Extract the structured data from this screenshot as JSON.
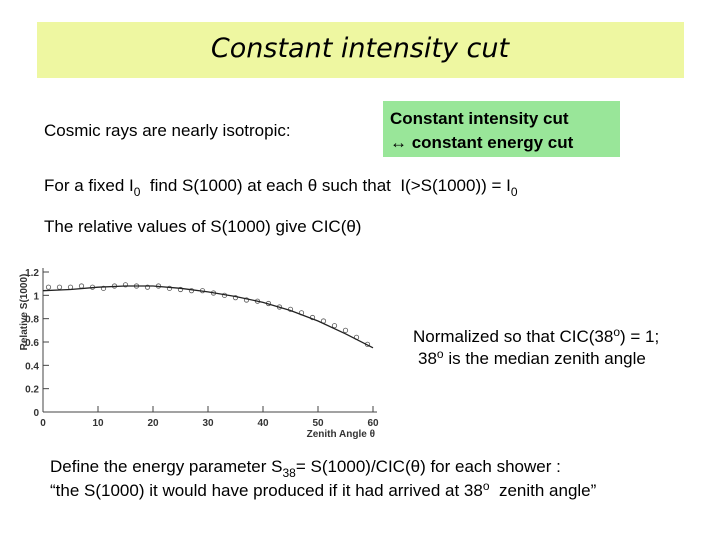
{
  "title": "Constant intensity cut",
  "left_text": "Cosmic rays are nearly isotropic:",
  "box": [
    "Constant intensity cut",
    "↔ constant energy cut"
  ],
  "line1": [
    "For a fixed I",
    "0",
    "  find S(1000) at each θ such that  I(>S(1000)) = I",
    "0"
  ],
  "line2": "The relative values of S(1000) give CIC(θ)",
  "note": [
    [
      "Normalized so that CIC(38",
      "o",
      ") = 1;"
    ],
    [
      "38",
      "o",
      " is the median zenith angle"
    ]
  ],
  "footer": [
    [
      "Define the energy parameter S",
      "38",
      "= S(1000)/CIC(θ) for each shower :"
    ],
    [
      "“the S(1000) it would have produced if it had arrived at 38",
      "o",
      "  zenith angle”"
    ]
  ],
  "chart_data": {
    "type": "scatter",
    "x_label": "Zenith Angle θ",
    "y_label": "Relative S(1000)",
    "xlim": [
      0,
      60
    ],
    "ylim": [
      0,
      1.2
    ],
    "xticks": [
      0,
      10,
      20,
      30,
      40,
      50,
      60
    ],
    "yticks": [
      0,
      0.2,
      0.4,
      0.6,
      0.8,
      1,
      1.2
    ],
    "series": [
      {
        "type": "scatter",
        "color": "#555555",
        "x": [
          1,
          3,
          5,
          7,
          9,
          11,
          13,
          15,
          17,
          19,
          21,
          23,
          25,
          27,
          29,
          31,
          33,
          35,
          37,
          39,
          41,
          43,
          45,
          47,
          49,
          51,
          53,
          55,
          57,
          59
        ],
        "values": [
          1.07,
          1.07,
          1.07,
          1.08,
          1.07,
          1.06,
          1.08,
          1.09,
          1.08,
          1.07,
          1.08,
          1.06,
          1.05,
          1.04,
          1.04,
          1.02,
          1.0,
          0.98,
          0.96,
          0.95,
          0.93,
          0.9,
          0.88,
          0.85,
          0.81,
          0.78,
          0.74,
          0.7,
          0.64,
          0.58
        ]
      },
      {
        "type": "line",
        "color": "#222222",
        "x": [
          0,
          5,
          10,
          15,
          20,
          25,
          30,
          35,
          40,
          45,
          50,
          55,
          60
        ],
        "values": [
          1.04,
          1.05,
          1.07,
          1.08,
          1.08,
          1.06,
          1.03,
          0.99,
          0.94,
          0.87,
          0.78,
          0.67,
          0.55
        ]
      }
    ]
  }
}
